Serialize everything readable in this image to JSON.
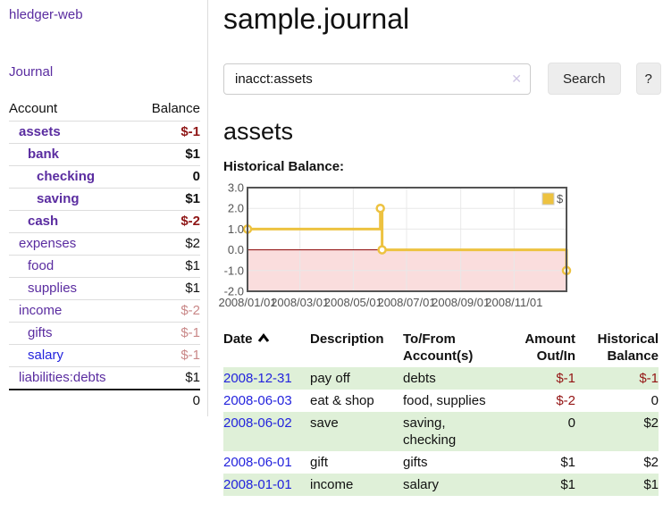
{
  "app": {
    "brand": "hledger-web"
  },
  "sidebar": {
    "journal_link": "Journal",
    "accounts": {
      "header": {
        "account": "Account",
        "balance": "Balance"
      },
      "rows": [
        {
          "name": "assets",
          "level": 1,
          "bold": true,
          "link_color": "purple",
          "balance": "$-1",
          "balance_style": "neg-strong"
        },
        {
          "name": "bank",
          "level": 2,
          "bold": true,
          "link_color": "purple",
          "balance": "$1",
          "balance_style": "pos"
        },
        {
          "name": "checking",
          "level": 3,
          "bold": true,
          "link_color": "purple",
          "balance": "0",
          "balance_style": "pos"
        },
        {
          "name": "saving",
          "level": 3,
          "bold": true,
          "link_color": "purple",
          "balance": "$1",
          "balance_style": "pos"
        },
        {
          "name": "cash",
          "level": 2,
          "bold": true,
          "link_color": "purple",
          "balance": "$-2",
          "balance_style": "neg-strong"
        },
        {
          "name": "expenses",
          "level": 1,
          "bold": false,
          "link_color": "purple",
          "balance": "$2",
          "balance_style": "pos"
        },
        {
          "name": "food",
          "level": 2,
          "bold": false,
          "link_color": "purple",
          "balance": "$1",
          "balance_style": "pos"
        },
        {
          "name": "supplies",
          "level": 2,
          "bold": false,
          "link_color": "purple",
          "balance": "$1",
          "balance_style": "pos"
        },
        {
          "name": "income",
          "level": 1,
          "bold": false,
          "link_color": "purple",
          "balance": "$-2",
          "balance_style": "neg-light"
        },
        {
          "name": "gifts",
          "level": 2,
          "bold": false,
          "link_color": "purple",
          "balance": "$-1",
          "balance_style": "neg-light"
        },
        {
          "name": "salary",
          "level": 2,
          "bold": false,
          "link_color": "blue",
          "balance": "$-1",
          "balance_style": "neg-light"
        },
        {
          "name": "liabilities:debts",
          "level": 1,
          "bold": false,
          "link_color": "purple",
          "balance": "$1",
          "balance_style": "pos"
        }
      ],
      "total": "0"
    }
  },
  "main": {
    "title": "sample.journal",
    "search": {
      "value": "inacct:assets",
      "clear_icon": "✕",
      "button_label": "Search",
      "help_label": "?"
    },
    "account_heading": "assets",
    "chart_label": "Historical Balance:"
  },
  "chart_data": {
    "type": "line",
    "title": "Historical Balance",
    "step": true,
    "series": [
      {
        "name": "$",
        "color": "#edc240",
        "points": [
          {
            "date": "2008-01-01",
            "day": 0,
            "value": 1
          },
          {
            "date": "2008-06-01",
            "day": 152,
            "value": 2
          },
          {
            "date": "2008-06-03",
            "day": 154,
            "value": 0
          },
          {
            "date": "2008-12-31",
            "day": 365,
            "value": -1
          }
        ]
      }
    ],
    "x_axis": {
      "range_days": [
        0,
        365
      ],
      "ticks": [
        {
          "label": "2008/01/01",
          "day": 0
        },
        {
          "label": "2008/03/01",
          "day": 60
        },
        {
          "label": "2008/05/01",
          "day": 121
        },
        {
          "label": "2008/07/01",
          "day": 182
        },
        {
          "label": "2008/09/01",
          "day": 244
        },
        {
          "label": "2008/11/01",
          "day": 305
        }
      ]
    },
    "y_axis": {
      "range": [
        -2,
        3
      ],
      "ticks": [
        3,
        2,
        1,
        0,
        -1,
        -2
      ],
      "tick_labels": [
        "3.0",
        "2.0",
        "1.0",
        "0.0",
        "-1.0",
        "-2.0"
      ]
    },
    "legend": {
      "position": "top-right",
      "entries": [
        {
          "label": "$",
          "color": "#edc240"
        }
      ]
    },
    "grid": {
      "on": true,
      "gridline_color": "#e8e8e8",
      "border_color": "#545454",
      "negative_region_color": "#fadddd",
      "zero_line_color": "#8b0000",
      "label_color": "#545454"
    }
  },
  "register": {
    "headers": {
      "date": "Date",
      "description": "Description",
      "tofrom": "To/From Account(s)",
      "amount": "Amount Out/In",
      "balance": "Historical Balance",
      "sort": "ascending"
    },
    "rows": [
      {
        "date": "2008-12-31",
        "description": "pay off",
        "accounts": "debts",
        "amount": "$-1",
        "amount_neg": true,
        "balance": "$-1",
        "balance_neg": true
      },
      {
        "date": "2008-06-03",
        "description": "eat & shop",
        "accounts": "food, supplies",
        "amount": "$-2",
        "amount_neg": true,
        "balance": "0",
        "balance_neg": false
      },
      {
        "date": "2008-06-02",
        "description": "save",
        "accounts": "saving, checking",
        "amount": "0",
        "amount_neg": false,
        "balance": "$2",
        "balance_neg": false
      },
      {
        "date": "2008-06-01",
        "description": "gift",
        "accounts": "gifts",
        "amount": "$1",
        "amount_neg": false,
        "balance": "$2",
        "balance_neg": false
      },
      {
        "date": "2008-01-01",
        "description": "income",
        "accounts": "salary",
        "amount": "$1",
        "amount_neg": false,
        "balance": "$1",
        "balance_neg": false
      }
    ]
  },
  "colors": {
    "link_purple": "#5a2ca0",
    "link_blue": "#2323dd",
    "neg_strong": "#8f1616",
    "neg_light": "#c98888",
    "neg_table": "#941414",
    "row_alt_green": "#dff0d8",
    "chart_gold": "#edc240"
  }
}
